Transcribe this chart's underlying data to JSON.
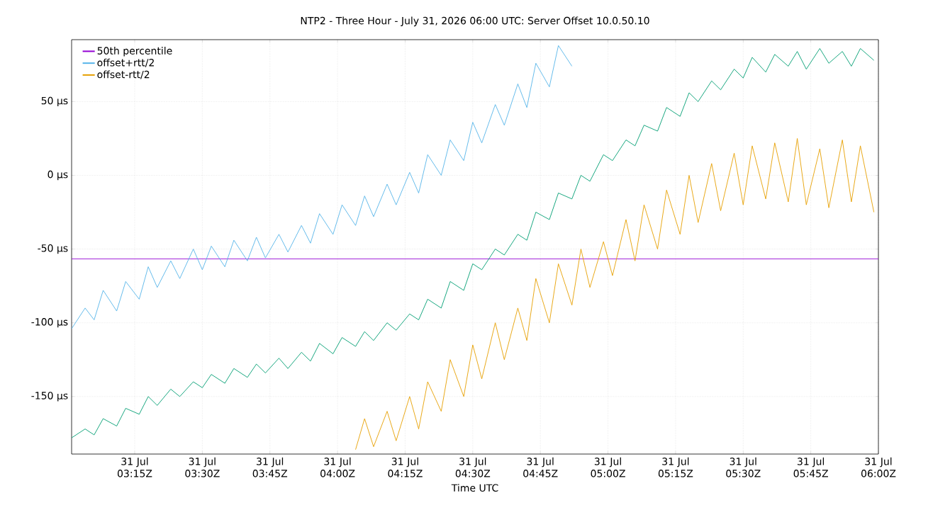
{
  "chart_data": {
    "type": "line",
    "title": "NTP2 - Three Hour - July 31, 2026 06:00 UTC: Server Offset 10.0.50.10",
    "xlabel": "Time UTC",
    "xlim": [
      "2026-07-31T03:01",
      "2026-07-31T06:00"
    ],
    "xticks": [
      {
        "value": "2026-07-31T03:15",
        "label": "31 Jul 03:15Z"
      },
      {
        "value": "2026-07-31T03:30",
        "label": "31 Jul 03:30Z"
      },
      {
        "value": "2026-07-31T03:45",
        "label": "31 Jul 03:45Z"
      },
      {
        "value": "2026-07-31T04:00",
        "label": "31 Jul 04:00Z"
      },
      {
        "value": "2026-07-31T04:15",
        "label": "31 Jul 04:15Z"
      },
      {
        "value": "2026-07-31T04:30",
        "label": "31 Jul 04:30Z"
      },
      {
        "value": "2026-07-31T04:45",
        "label": "31 Jul 04:45Z"
      },
      {
        "value": "2026-07-31T05:00",
        "label": "31 Jul 05:00Z"
      },
      {
        "value": "2026-07-31T05:15",
        "label": "31 Jul 05:15Z"
      },
      {
        "value": "2026-07-31T05:30",
        "label": "31 Jul 05:30Z"
      },
      {
        "value": "2026-07-31T05:45",
        "label": "31 Jul 05:45Z"
      },
      {
        "value": "2026-07-31T06:00",
        "label": "31 Jul 06:00Z"
      }
    ],
    "ylim": [
      -189,
      92
    ],
    "yticks": [
      {
        "value": -150,
        "label": "-150 µs"
      },
      {
        "value": -100,
        "label": "-100 µs"
      },
      {
        "value": -50,
        "label": "-50 µs"
      },
      {
        "value": 0,
        "label": "0 µs"
      },
      {
        "value": 50,
        "label": "50 µs"
      }
    ],
    "grid": true,
    "legend": "top left",
    "series": [
      {
        "name": "50th percentile",
        "color": "#9400d3",
        "x": [
          "2026-07-31T03:01",
          "2026-07-31T06:00"
        ],
        "values": [
          -56.7,
          -56.7
        ]
      },
      {
        "color": "#009e73",
        "x": [
          "2026-07-31T03:01",
          "2026-07-31T03:04",
          "2026-07-31T03:06",
          "2026-07-31T03:08",
          "2026-07-31T03:11",
          "2026-07-31T03:13",
          "2026-07-31T03:16",
          "2026-07-31T03:18",
          "2026-07-31T03:20",
          "2026-07-31T03:23",
          "2026-07-31T03:25",
          "2026-07-31T03:28",
          "2026-07-31T03:30",
          "2026-07-31T03:32",
          "2026-07-31T03:35",
          "2026-07-31T03:37",
          "2026-07-31T03:40",
          "2026-07-31T03:42",
          "2026-07-31T03:44",
          "2026-07-31T03:47",
          "2026-07-31T03:49",
          "2026-07-31T03:52",
          "2026-07-31T03:54",
          "2026-07-31T03:56",
          "2026-07-31T03:59",
          "2026-07-31T04:01",
          "2026-07-31T04:04",
          "2026-07-31T04:06",
          "2026-07-31T04:08",
          "2026-07-31T04:11",
          "2026-07-31T04:13",
          "2026-07-31T04:16",
          "2026-07-31T04:18",
          "2026-07-31T04:20",
          "2026-07-31T04:23",
          "2026-07-31T04:25",
          "2026-07-31T04:28",
          "2026-07-31T04:30",
          "2026-07-31T04:32",
          "2026-07-31T04:35",
          "2026-07-31T04:37",
          "2026-07-31T04:40",
          "2026-07-31T04:42",
          "2026-07-31T04:44",
          "2026-07-31T04:47",
          "2026-07-31T04:49",
          "2026-07-31T04:52",
          "2026-07-31T04:54",
          "2026-07-31T04:56",
          "2026-07-31T04:59",
          "2026-07-31T05:01",
          "2026-07-31T05:04",
          "2026-07-31T05:06",
          "2026-07-31T05:08",
          "2026-07-31T05:11",
          "2026-07-31T05:13",
          "2026-07-31T05:16",
          "2026-07-31T05:18",
          "2026-07-31T05:20",
          "2026-07-31T05:23",
          "2026-07-31T05:25",
          "2026-07-31T05:28",
          "2026-07-31T05:30",
          "2026-07-31T05:32",
          "2026-07-31T05:35",
          "2026-07-31T05:37",
          "2026-07-31T05:40",
          "2026-07-31T05:42",
          "2026-07-31T05:44",
          "2026-07-31T05:47",
          "2026-07-31T05:49",
          "2026-07-31T05:52",
          "2026-07-31T05:54",
          "2026-07-31T05:56",
          "2026-07-31T05:59"
        ],
        "values": [
          -178,
          -172,
          -176,
          -165,
          -170,
          -158,
          -162,
          -150,
          -156,
          -145,
          -150,
          -140,
          -144,
          -135,
          -141,
          -131,
          -137,
          -128,
          -134,
          -124,
          -131,
          -120,
          -126,
          -114,
          -121,
          -110,
          -116,
          -106,
          -112,
          -100,
          -105,
          -94,
          -98,
          -84,
          -90,
          -72,
          -78,
          -60,
          -64,
          -50,
          -54,
          -40,
          -44,
          -25,
          -30,
          -12,
          -16,
          0,
          -4,
          14,
          10,
          24,
          20,
          34,
          30,
          46,
          40,
          56,
          50,
          64,
          58,
          72,
          66,
          80,
          70,
          82,
          74,
          84,
          72,
          86,
          76,
          84,
          74,
          86,
          78
        ]
      },
      {
        "name": "offset+rtt/2",
        "color": "#56b4e9",
        "x": [
          "2026-07-31T03:01",
          "2026-07-31T03:04",
          "2026-07-31T03:06",
          "2026-07-31T03:08",
          "2026-07-31T03:11",
          "2026-07-31T03:13",
          "2026-07-31T03:16",
          "2026-07-31T03:18",
          "2026-07-31T03:20",
          "2026-07-31T03:23",
          "2026-07-31T03:25",
          "2026-07-31T03:28",
          "2026-07-31T03:30",
          "2026-07-31T03:32",
          "2026-07-31T03:35",
          "2026-07-31T03:37",
          "2026-07-31T03:40",
          "2026-07-31T03:42",
          "2026-07-31T03:44",
          "2026-07-31T03:47",
          "2026-07-31T03:49",
          "2026-07-31T03:52",
          "2026-07-31T03:54",
          "2026-07-31T03:56",
          "2026-07-31T03:59",
          "2026-07-31T04:01",
          "2026-07-31T04:04",
          "2026-07-31T04:06",
          "2026-07-31T04:08",
          "2026-07-31T04:11",
          "2026-07-31T04:13",
          "2026-07-31T04:16",
          "2026-07-31T04:18",
          "2026-07-31T04:20",
          "2026-07-31T04:23",
          "2026-07-31T04:25",
          "2026-07-31T04:28",
          "2026-07-31T04:30",
          "2026-07-31T04:32",
          "2026-07-31T04:35",
          "2026-07-31T04:37",
          "2026-07-31T04:40",
          "2026-07-31T04:42",
          "2026-07-31T04:44",
          "2026-07-31T04:47",
          "2026-07-31T04:49",
          "2026-07-31T04:52"
        ],
        "values": [
          -104,
          -90,
          -98,
          -78,
          -92,
          -72,
          -84,
          -62,
          -76,
          -58,
          -70,
          -50,
          -64,
          -48,
          -62,
          -44,
          -58,
          -42,
          -56,
          -40,
          -52,
          -34,
          -46,
          -26,
          -40,
          -20,
          -34,
          -14,
          -28,
          -6,
          -20,
          2,
          -12,
          14,
          0,
          24,
          10,
          36,
          22,
          48,
          34,
          62,
          46,
          76,
          60,
          88,
          74
        ]
      },
      {
        "name": "offset-rtt/2",
        "color": "#e69f00",
        "x": [
          "2026-07-31T04:04",
          "2026-07-31T04:06",
          "2026-07-31T04:08",
          "2026-07-31T04:11",
          "2026-07-31T04:13",
          "2026-07-31T04:16",
          "2026-07-31T04:18",
          "2026-07-31T04:20",
          "2026-07-31T04:23",
          "2026-07-31T04:25",
          "2026-07-31T04:28",
          "2026-07-31T04:30",
          "2026-07-31T04:32",
          "2026-07-31T04:35",
          "2026-07-31T04:37",
          "2026-07-31T04:40",
          "2026-07-31T04:42",
          "2026-07-31T04:44",
          "2026-07-31T04:47",
          "2026-07-31T04:49",
          "2026-07-31T04:52",
          "2026-07-31T04:54",
          "2026-07-31T04:56",
          "2026-07-31T04:59",
          "2026-07-31T05:01",
          "2026-07-31T05:04",
          "2026-07-31T05:06",
          "2026-07-31T05:08",
          "2026-07-31T05:11",
          "2026-07-31T05:13",
          "2026-07-31T05:16",
          "2026-07-31T05:18",
          "2026-07-31T05:20",
          "2026-07-31T05:23",
          "2026-07-31T05:25",
          "2026-07-31T05:28",
          "2026-07-31T05:30",
          "2026-07-31T05:32",
          "2026-07-31T05:35",
          "2026-07-31T05:37",
          "2026-07-31T05:40",
          "2026-07-31T05:42",
          "2026-07-31T05:44",
          "2026-07-31T05:47",
          "2026-07-31T05:49",
          "2026-07-31T05:52",
          "2026-07-31T05:54",
          "2026-07-31T05:56",
          "2026-07-31T05:59"
        ],
        "values": [
          -186,
          -165,
          -184,
          -160,
          -180,
          -150,
          -172,
          -140,
          -160,
          -125,
          -150,
          -115,
          -138,
          -100,
          -125,
          -90,
          -112,
          -70,
          -100,
          -60,
          -88,
          -50,
          -76,
          -45,
          -68,
          -30,
          -58,
          -20,
          -50,
          -10,
          -40,
          0,
          -32,
          8,
          -24,
          15,
          -20,
          20,
          -16,
          22,
          -18,
          25,
          -20,
          18,
          -22,
          24,
          -18,
          20,
          -25
        ]
      }
    ]
  }
}
